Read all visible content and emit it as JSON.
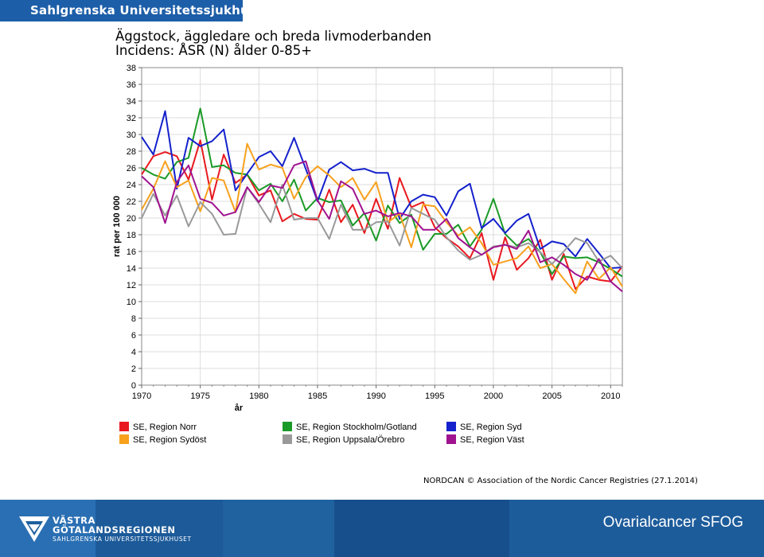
{
  "header": {
    "org_name": "Sahlgrenska Universitetssjukhuset"
  },
  "chart_data": {
    "type": "line",
    "title": "Äggstock, äggledare och breda livmoderbanden",
    "subtitle": "Incidens: ÅSR (N) ålder 0-85+",
    "xlabel": "år",
    "ylabel": "rat per 100 000",
    "xlim": [
      1970,
      2011
    ],
    "ylim": [
      0,
      38
    ],
    "x_ticks": [
      1970,
      1975,
      1980,
      1985,
      1990,
      1995,
      2000,
      2005,
      2010
    ],
    "y_ticks": [
      0,
      2,
      4,
      6,
      8,
      10,
      12,
      14,
      16,
      18,
      20,
      22,
      24,
      26,
      28,
      30,
      32,
      34,
      36,
      38
    ],
    "grid": true,
    "legend_position": "bottom",
    "x": [
      1970,
      1971,
      1972,
      1973,
      1974,
      1975,
      1976,
      1977,
      1978,
      1979,
      1980,
      1981,
      1982,
      1983,
      1984,
      1985,
      1986,
      1987,
      1988,
      1989,
      1990,
      1991,
      1992,
      1993,
      1994,
      1995,
      1996,
      1997,
      1998,
      1999,
      2000,
      2001,
      2002,
      2003,
      2004,
      2005,
      2006,
      2007,
      2008,
      2009,
      2010,
      2011
    ],
    "series": [
      {
        "name": "SE, Region Norr",
        "color": "#e8191f",
        "values": [
          25.2,
          27.4,
          27.9,
          27.4,
          24.6,
          29.3,
          22.2,
          27.6,
          24.2,
          25.2,
          22.7,
          23.3,
          19.6,
          20.5,
          19.9,
          19.8,
          23.4,
          19.5,
          21.6,
          18.2,
          22.3,
          18.7,
          24.8,
          21.3,
          21.9,
          18.9,
          17.6,
          16.6,
          15.2,
          18.2,
          12.6,
          17.7,
          13.8,
          15.2,
          17.4,
          12.6,
          15.7,
          11.5,
          13.0,
          12.6,
          12.4,
          14.2
        ]
      },
      {
        "name": "SE, Region Stockholm/Gotland",
        "color": "#1a9a27",
        "values": [
          26.0,
          25.2,
          24.7,
          26.7,
          27.2,
          33.1,
          26.1,
          26.3,
          25.4,
          25.2,
          23.3,
          24.1,
          22.0,
          24.6,
          20.9,
          22.4,
          21.9,
          22.1,
          19.1,
          20.6,
          17.3,
          21.5,
          19.4,
          20.4,
          16.2,
          18.1,
          18.1,
          19.2,
          16.6,
          18.6,
          22.3,
          18.1,
          16.7,
          17.5,
          15.9,
          13.3,
          15.4,
          15.2,
          15.3,
          14.7,
          13.9,
          13.0
        ]
      },
      {
        "name": "SE, Region Syd",
        "color": "#1421cc",
        "values": [
          29.7,
          27.6,
          32.8,
          23.5,
          29.6,
          28.6,
          29.2,
          30.6,
          23.3,
          25.3,
          27.3,
          28.0,
          26.2,
          29.6,
          25.9,
          22.0,
          25.8,
          26.7,
          25.7,
          25.9,
          25.4,
          25.4,
          19.9,
          22.0,
          22.8,
          22.5,
          20.3,
          23.2,
          24.1,
          18.8,
          19.9,
          18.2,
          19.7,
          20.5,
          16.3,
          17.2,
          16.9,
          15.4,
          17.5,
          15.8,
          14.0,
          14.1
        ]
      },
      {
        "name": "SE, Region Sydöst",
        "color": "#f7a11d",
        "values": [
          21.0,
          23.5,
          26.8,
          23.7,
          24.5,
          20.8,
          24.8,
          24.5,
          20.7,
          28.9,
          25.8,
          26.4,
          26.0,
          22.3,
          24.9,
          26.2,
          25.1,
          23.7,
          24.8,
          22.2,
          24.3,
          19.5,
          20.5,
          16.5,
          21.6,
          21.4,
          19.5,
          17.9,
          18.9,
          17.0,
          14.4,
          14.8,
          15.2,
          16.6,
          14.0,
          14.5,
          12.7,
          11.0,
          14.8,
          12.7,
          14.1,
          11.8
        ]
      },
      {
        "name": "SE, Region Uppsala/Örebro",
        "color": "#999999",
        "values": [
          20.0,
          22.9,
          20.3,
          22.7,
          19.0,
          21.9,
          20.5,
          18.0,
          18.1,
          23.7,
          21.7,
          19.5,
          24.0,
          19.8,
          20.0,
          20.0,
          17.5,
          21.6,
          18.6,
          18.6,
          19.5,
          19.6,
          16.7,
          21.2,
          20.5,
          19.8,
          17.7,
          16.1,
          15.0,
          15.6,
          16.6,
          16.8,
          16.5,
          17.0,
          15.9,
          14.5,
          16.0,
          17.6,
          17.0,
          14.8,
          15.5,
          14.0
        ]
      },
      {
        "name": "SE, Region Väst",
        "color": "#a0128f",
        "values": [
          25.0,
          23.7,
          19.4,
          24.3,
          26.3,
          22.3,
          21.8,
          20.3,
          20.7,
          23.7,
          21.9,
          23.9,
          23.6,
          26.3,
          26.8,
          22.1,
          19.9,
          24.4,
          23.5,
          20.5,
          20.9,
          20.2,
          20.6,
          20.2,
          18.6,
          18.6,
          19.9,
          17.6,
          16.5,
          15.6,
          16.5,
          16.8,
          16.3,
          18.5,
          14.7,
          15.3,
          14.4,
          13.3,
          12.6,
          15.1,
          12.4,
          11.2
        ]
      }
    ]
  },
  "credit": "NORDCAN © Association of the Nordic Cancer Registries (27.1.2014)",
  "footer": {
    "logo_line1": "VÄSTRA",
    "logo_line2": "GÖTALANDSREGIONEN",
    "logo_line3": "SAHLGRENSKA UNIVERSITETSSJUKHUSET",
    "presentation_title": "Ovarialcancer SFOG"
  }
}
